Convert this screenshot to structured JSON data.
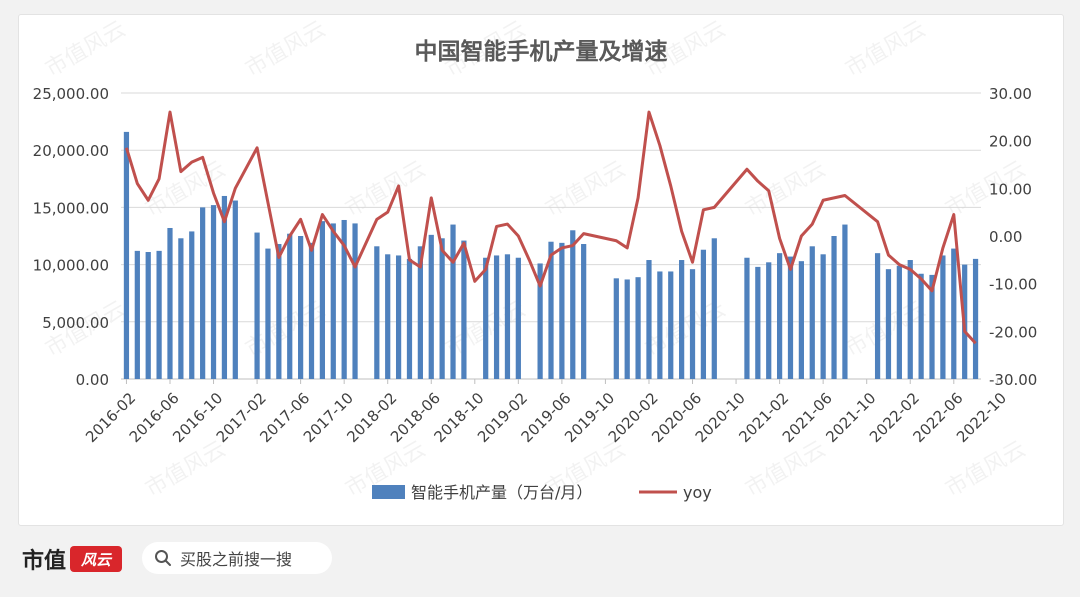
{
  "chart_data": {
    "type": "bar+line",
    "title": "中国智能手机产量及增速",
    "x_tick_labels": [
      "2016-02",
      "2016-06",
      "2016-10",
      "2017-02",
      "2017-06",
      "2017-10",
      "2018-02",
      "2018-06",
      "2018-10",
      "2019-02",
      "2019-06",
      "2019-10",
      "2020-02",
      "2020-06",
      "2020-10",
      "2021-02",
      "2021-06",
      "2021-10",
      "2022-02",
      "2022-06",
      "2022-10"
    ],
    "left_axis": {
      "ylim": [
        0,
        25000
      ],
      "ticks": [
        "0.00",
        "5,000.00",
        "10,000.00",
        "15,000.00",
        "20,000.00",
        "25,000.00"
      ]
    },
    "right_axis": {
      "ylim": [
        -30,
        30
      ],
      "ticks": [
        "-30.00",
        "-20.00",
        "-10.00",
        "0.00",
        "10.00",
        "20.00",
        "30.00"
      ]
    },
    "grid": true,
    "legend_position": "bottom",
    "series": [
      {
        "name": "智能手机产量（万台/月）",
        "type": "bar",
        "color": "#4f81bd",
        "axis": "left",
        "values": [
          21600,
          11200,
          11100,
          11200,
          13200,
          12300,
          12900,
          15000,
          15200,
          16000,
          15600,
          null,
          12800,
          11400,
          11800,
          12700,
          12500,
          11900,
          13800,
          13600,
          13900,
          13600,
          null,
          11600,
          10900,
          10800,
          10500,
          11600,
          12600,
          12300,
          13500,
          12100,
          null,
          10600,
          10800,
          10900,
          10600,
          null,
          10100,
          12000,
          11900,
          13000,
          11800,
          null,
          null,
          8800,
          8700,
          8900,
          10400,
          9400,
          9400,
          10400,
          9600,
          11300,
          12300,
          null,
          null,
          10600,
          9800,
          10200,
          11000,
          10700,
          10300,
          11600,
          10900,
          12500,
          13500,
          null,
          null,
          11000,
          9600,
          9900,
          10400,
          9200,
          9100,
          10800,
          11400,
          10000,
          10500
        ]
      },
      {
        "name": "yoy",
        "type": "line",
        "color": "#c0504d",
        "axis": "right",
        "values": [
          18.5,
          11,
          7.5,
          12,
          26,
          13.5,
          15.5,
          16.5,
          9,
          3,
          10,
          null,
          18.5,
          7,
          -4.5,
          0,
          3.5,
          -3,
          4.5,
          1,
          -2,
          -6.5,
          null,
          3.5,
          5,
          10.5,
          -5,
          -6.5,
          8,
          -3,
          -5.5,
          -1.5,
          -9.5,
          -7,
          2,
          2.5,
          0,
          -5,
          -10.5,
          -4,
          -2.5,
          -2,
          0.5,
          null,
          null,
          -1,
          -2.5,
          8,
          26,
          19,
          10.5,
          1,
          -5.5,
          5.5,
          6,
          null,
          null,
          14,
          11.5,
          9.5,
          -0.5,
          -7,
          0,
          2.5,
          7.5,
          8,
          8.5,
          null,
          null,
          3,
          -4,
          -6,
          -7,
          -9,
          -11.5,
          -2.5,
          4.5,
          -20,
          -22.5
        ]
      }
    ]
  },
  "legend": {
    "bar_label": "智能手机产量（万台/月）",
    "line_label": "yoy"
  },
  "watermark": "市值风云",
  "footer": {
    "brand_text": "市值",
    "brand_logo_text": "风云",
    "search_placeholder": "买股之前搜一搜"
  },
  "colors": {
    "bar": "#4f81bd",
    "line": "#c0504d",
    "grid": "#d9d9d9"
  }
}
